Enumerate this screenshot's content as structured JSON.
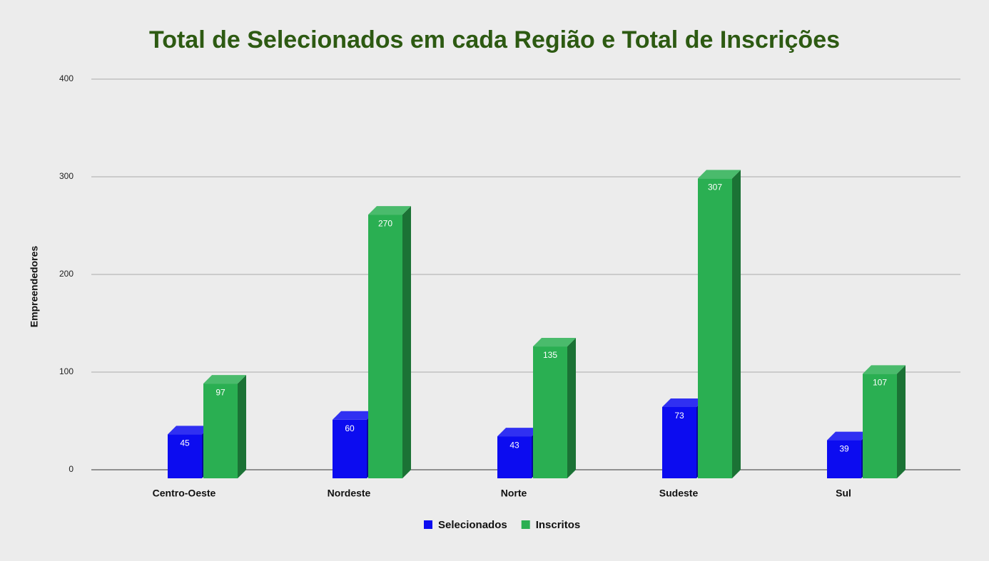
{
  "chart_data": {
    "type": "bar3d",
    "title": "Total de Selecionados em cada Região e Total de Inscrições",
    "y_label": "Empreendedores",
    "categories": [
      "Centro-Oeste",
      "Nordeste",
      "Norte",
      "Sudeste",
      "Sul"
    ],
    "series": [
      {
        "name": "Selecionados",
        "color": "#0c0cf0",
        "values": [
          45,
          60,
          43,
          73,
          39
        ]
      },
      {
        "name": "Inscritos",
        "color": "#2aaf52",
        "values": [
          97,
          270,
          135,
          307,
          107
        ]
      }
    ],
    "ylim": [
      0,
      400
    ],
    "yticks": [
      0,
      100,
      200,
      300,
      400
    ],
    "grid": true,
    "legend": "bottom"
  }
}
